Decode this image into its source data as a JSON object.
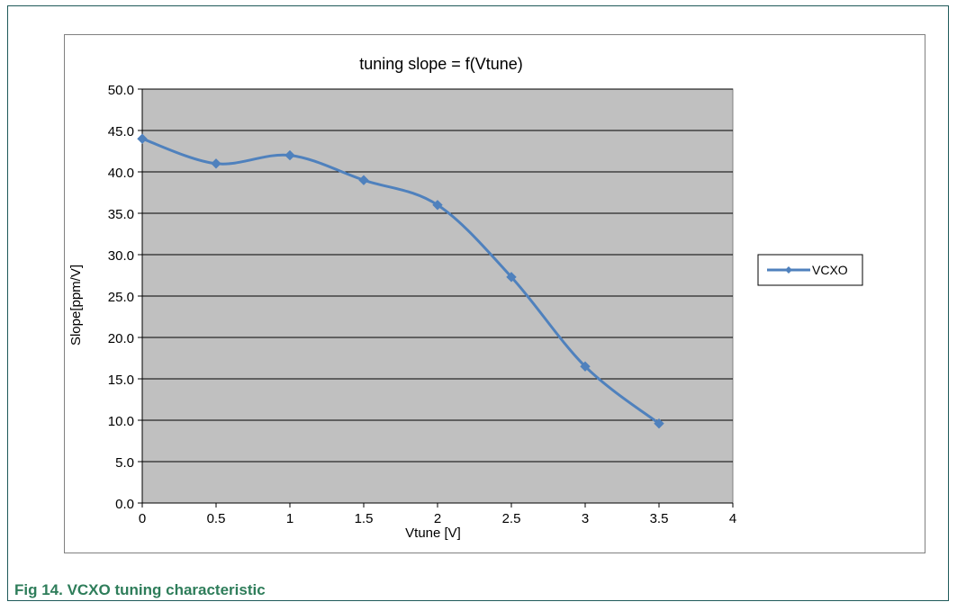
{
  "figure": {
    "caption": "Fig 14.  VCXO tuning characteristic"
  },
  "chart_data": {
    "type": "line",
    "title": "tuning slope = f(Vtune)",
    "xlabel": "Vtune [V]",
    "ylabel": "Slope[ppm/V]",
    "xlim": [
      0,
      4
    ],
    "ylim": [
      0,
      50
    ],
    "x_ticks": [
      "0",
      "0.5",
      "1",
      "1.5",
      "2",
      "2.5",
      "3",
      "3.5",
      "4"
    ],
    "y_ticks": [
      "0.0",
      "5.0",
      "10.0",
      "15.0",
      "20.0",
      "25.0",
      "30.0",
      "35.0",
      "40.0",
      "45.0",
      "50.0"
    ],
    "grid": "horizontal",
    "legend_position": "right",
    "series": [
      {
        "name": "VCXO",
        "color": "#4f81bd",
        "marker": "diamond",
        "smooth": true,
        "x": [
          0,
          0.5,
          1,
          1.5,
          2,
          2.5,
          3,
          3.5
        ],
        "y": [
          44.0,
          41.0,
          42.0,
          39.0,
          36.0,
          27.3,
          16.5,
          9.6
        ]
      }
    ],
    "plot_background": "#c0c0c0"
  }
}
